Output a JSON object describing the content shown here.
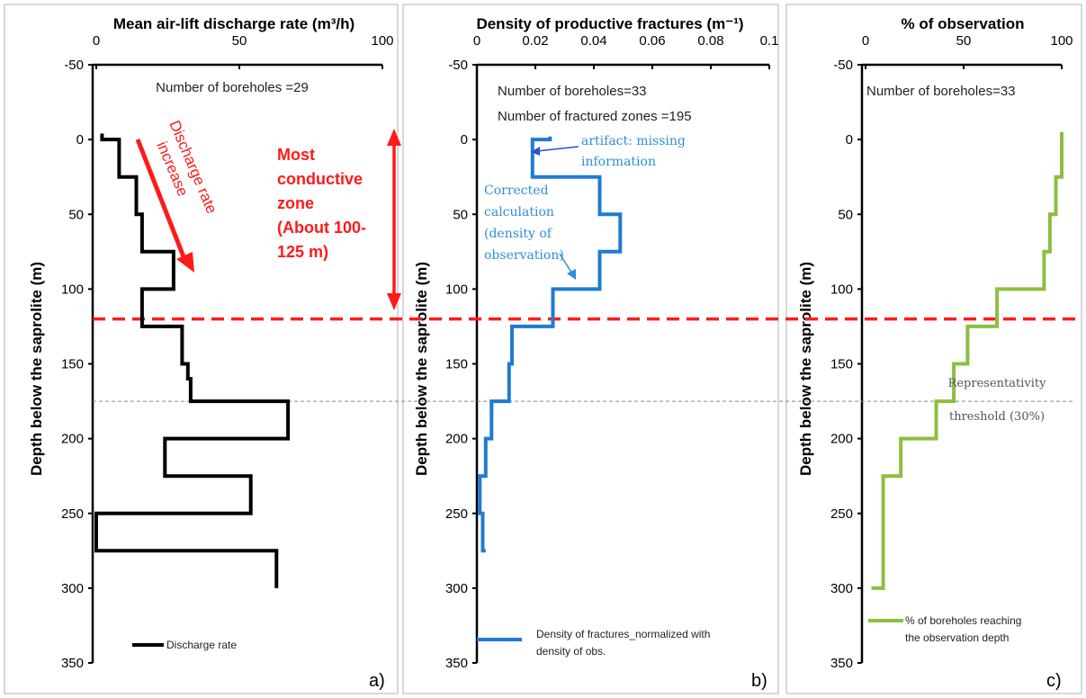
{
  "chart_data": [
    {
      "type": "line",
      "panel_label": "a)",
      "title": "Mean air-lift discharge rate (m³/h)",
      "ylabel": "Depth below the saprolite (m)",
      "xlim": [
        0,
        100
      ],
      "ylim": [
        -50,
        350
      ],
      "y_inverted": true,
      "x_axis_position": "top",
      "xticks": [
        "0",
        "50",
        "100"
      ],
      "yticks": [
        "-50",
        "0",
        "50",
        "100",
        "150",
        "200",
        "250",
        "300",
        "350"
      ],
      "annotation_boreholes": "Number of boreholes =29",
      "annotation_discharge": [
        "Discharge rate",
        "increase"
      ],
      "annotation_zone": [
        "Most",
        "conductive",
        "zone",
        "(About 100-",
        "125 m)"
      ],
      "series": [
        {
          "name": "Discharge rate",
          "color": "#000000",
          "x": [
            2,
            2,
            8,
            8,
            14,
            14,
            16,
            16,
            27,
            27,
            16,
            16,
            16,
            16,
            30,
            30,
            32,
            32,
            33,
            33,
            67,
            67,
            24,
            24,
            54,
            54,
            0,
            0,
            63,
            63
          ],
          "y": [
            -4,
            0,
            0,
            25,
            25,
            50,
            50,
            75,
            75,
            100,
            100,
            120,
            120,
            125,
            125,
            150,
            150,
            160,
            160,
            175,
            175,
            200,
            200,
            225,
            225,
            250,
            250,
            275,
            275,
            300
          ]
        }
      ]
    },
    {
      "type": "line",
      "panel_label": "b)",
      "title": "Density of productive fractures (m⁻¹)",
      "ylabel": "Depth below the saprolite (m)",
      "xlim": [
        0,
        0.1
      ],
      "ylim": [
        -50,
        350
      ],
      "y_inverted": true,
      "x_axis_position": "top",
      "xticks": [
        "0",
        "0.02",
        "0.04",
        "0.06",
        "0.08",
        "0.1"
      ],
      "yticks": [
        "-50",
        "0",
        "50",
        "100",
        "150",
        "200",
        "250",
        "300",
        "350"
      ],
      "annotation_boreholes": "Number of boreholes=33",
      "annotation_zones": "Number of fractured zones =195",
      "annotation_artifact": [
        "artifact: missing",
        "information"
      ],
      "annotation_corrected": [
        "Corrected",
        "calculation",
        "(density of",
        "observation)"
      ],
      "series": [
        {
          "name": "Density of fractures_normalized with density of obs.",
          "color": "#1f7bd1",
          "x": [
            0.025,
            0.025,
            0.019,
            0.019,
            0.042,
            0.042,
            0.049,
            0.049,
            0.042,
            0.042,
            0.026,
            0.026,
            0.012,
            0.012,
            0.011,
            0.011,
            0.005,
            0.005,
            0.003,
            0.003,
            0.001,
            0.001,
            0.002,
            0.002,
            0.003
          ],
          "y": [
            -2,
            0,
            0,
            25,
            25,
            50,
            50,
            75,
            75,
            100,
            100,
            125,
            125,
            150,
            150,
            175,
            175,
            200,
            200,
            225,
            225,
            250,
            250,
            275,
            275
          ]
        }
      ],
      "legend": [
        "Density of fractures_normalized with",
        "density of obs."
      ]
    },
    {
      "type": "line",
      "panel_label": "c)",
      "title": "% of observation",
      "ylabel": "Depth below the saprolite (m)",
      "xlim": [
        0,
        100
      ],
      "ylim": [
        -50,
        350
      ],
      "y_inverted": true,
      "x_axis_position": "top",
      "xticks": [
        "0",
        "50",
        "100"
      ],
      "yticks": [
        "-50",
        "0",
        "50",
        "100",
        "150",
        "200",
        "250",
        "300",
        "350"
      ],
      "annotation_boreholes": "Number of boreholes=33",
      "annotation_threshold": [
        "Representativity",
        "threshold (30%)"
      ],
      "series": [
        {
          "name": "% of boreholes reaching the observation depth",
          "color": "#8cbf40",
          "x": [
            100,
            100,
            97,
            97,
            94,
            94,
            91,
            91,
            67,
            67,
            52,
            52,
            45,
            45,
            36,
            36,
            18,
            18,
            9,
            9,
            5,
            5,
            3
          ],
          "y": [
            -5,
            25,
            25,
            50,
            50,
            75,
            75,
            100,
            100,
            125,
            125,
            150,
            150,
            175,
            175,
            200,
            200,
            225,
            225,
            300,
            300,
            300,
            300
          ]
        }
      ],
      "legend": [
        "% of boreholes reaching",
        "the observation depth"
      ]
    }
  ],
  "reference_lines": {
    "red_dashed_depth": 120,
    "grey_dashed_depth": 175
  },
  "colors": {
    "red": "#ff1a1a",
    "blue": "#1f7bd1",
    "green": "#8cbf40",
    "grey": "#777777"
  }
}
